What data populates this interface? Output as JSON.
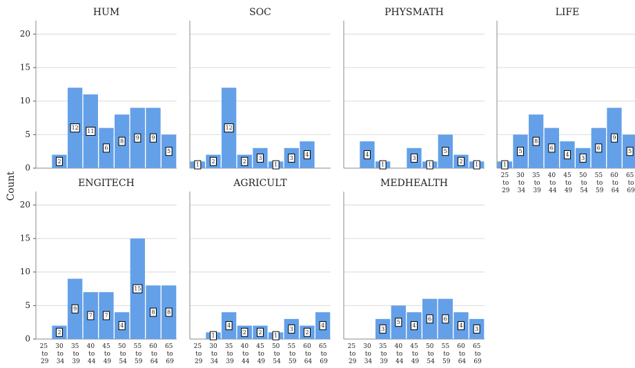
{
  "ylabel": "Count",
  "chart_data": [
    {
      "type": "bar",
      "title": "HUM",
      "categories": [
        "25 to 29",
        "30 to 34",
        "35 to 39",
        "40 to 44",
        "45 to 49",
        "50 to 54",
        "55 to 59",
        "60 to 64",
        "65 to 69"
      ],
      "values": [
        null,
        2,
        12,
        11,
        6,
        8,
        9,
        9,
        5
      ],
      "color": "#64a0e8",
      "ylim": [
        0,
        22
      ],
      "yticks": [
        0,
        5,
        10,
        15,
        20
      ],
      "grid": true
    },
    {
      "type": "bar",
      "title": "SOC",
      "categories": [
        "25 to 29",
        "30 to 34",
        "35 to 39",
        "40 to 44",
        "45 to 49",
        "50 to 54",
        "55 to 59",
        "60 to 64",
        "65 to 69"
      ],
      "values": [
        1,
        2,
        12,
        2,
        3,
        1,
        3,
        4,
        null
      ],
      "color": "#64a0e8",
      "ylim": [
        0,
        22
      ],
      "yticks": [
        0,
        5,
        10,
        15,
        20
      ],
      "grid": true
    },
    {
      "type": "bar",
      "title": "PHYSMATH",
      "categories": [
        "25 to 29",
        "30 to 34",
        "35 to 39",
        "40 to 44",
        "45 to 49",
        "50 to 54",
        "55 to 59",
        "60 to 64",
        "65 to 69"
      ],
      "values": [
        null,
        4,
        1,
        null,
        3,
        1,
        5,
        2,
        1
      ],
      "color": "#64a0e8",
      "ylim": [
        0,
        22
      ],
      "yticks": [
        0,
        5,
        10,
        15,
        20
      ],
      "grid": true
    },
    {
      "type": "bar",
      "title": "LIFE",
      "categories": [
        "25 to 29",
        "30 to 34",
        "35 to 39",
        "40 to 44",
        "45 to 49",
        "50 to 54",
        "55 to 59",
        "60 to 64",
        "65 to 69"
      ],
      "values": [
        1,
        5,
        8,
        6,
        4,
        3,
        6,
        9,
        5
      ],
      "color": "#64a0e8",
      "ylim": [
        0,
        22
      ],
      "yticks": [
        0,
        5,
        10,
        15,
        20
      ],
      "grid": true
    },
    {
      "type": "bar",
      "title": "ENGITECH",
      "categories": [
        "25 to 29",
        "30 to 34",
        "35 to 39",
        "40 to 44",
        "45 to 49",
        "50 to 54",
        "55 to 59",
        "60 to 64",
        "65 to 69"
      ],
      "values": [
        null,
        2,
        9,
        7,
        7,
        4,
        15,
        8,
        8
      ],
      "color": "#64a0e8",
      "ylim": [
        0,
        22
      ],
      "yticks": [
        0,
        5,
        10,
        15,
        20
      ],
      "grid": true
    },
    {
      "type": "bar",
      "title": "AGRICULT",
      "categories": [
        "25 to 29",
        "30 to 34",
        "35 to 39",
        "40 to 44",
        "45 to 49",
        "50 to 54",
        "55 to 59",
        "60 to 64",
        "65 to 69"
      ],
      "values": [
        null,
        1,
        4,
        2,
        2,
        1,
        3,
        2,
        4
      ],
      "color": "#64a0e8",
      "ylim": [
        0,
        22
      ],
      "yticks": [
        0,
        5,
        10,
        15,
        20
      ],
      "grid": true
    },
    {
      "type": "bar",
      "title": "MEDHEALTH",
      "categories": [
        "25 to 29",
        "30 to 34",
        "35 to 39",
        "40 to 44",
        "45 to 49",
        "50 to 54",
        "55 to 59",
        "60 to 64",
        "65 to 69"
      ],
      "values": [
        null,
        null,
        3,
        5,
        4,
        6,
        6,
        4,
        3
      ],
      "color": "#64a0e8",
      "ylim": [
        0,
        22
      ],
      "yticks": [
        0,
        5,
        10,
        15,
        20
      ],
      "grid": true
    }
  ]
}
